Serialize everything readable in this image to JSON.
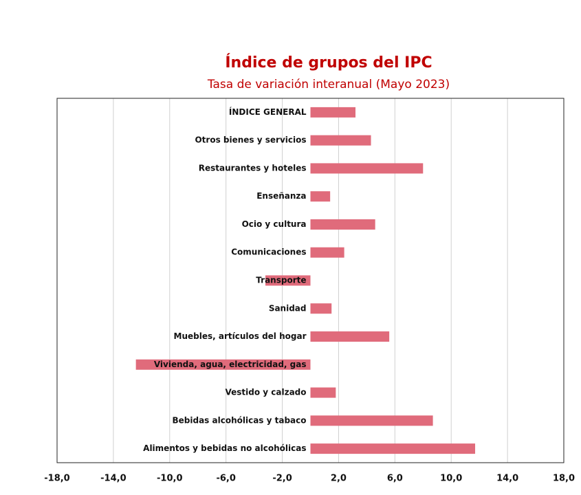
{
  "chart_data": {
    "type": "barh",
    "title": "Índice de grupos del IPC",
    "subtitle": "Tasa de variación interanual (Mayo 2023)",
    "categories": [
      "ÍNDICE GENERAL",
      "Otros bienes y servicios",
      "Restaurantes y hoteles",
      "Enseñanza",
      "Ocio y cultura",
      "Comunicaciones",
      "Transporte",
      "Sanidad",
      "Muebles, artículos del hogar",
      "Vivienda, agua, electricidad, gas",
      "Vestido y calzado",
      "Bebidas alcohólicas y tabaco",
      "Alimentos y bebidas no alcohólicas"
    ],
    "values": [
      3.2,
      4.3,
      8.0,
      1.4,
      4.6,
      2.4,
      -3.2,
      1.5,
      5.6,
      -12.4,
      1.8,
      8.7,
      11.7
    ],
    "color": "#e06b7b",
    "xlim": [
      -18,
      18
    ],
    "xticks": [
      {
        "value": -18,
        "label": "-18,0"
      },
      {
        "value": -14,
        "label": "-14,0"
      },
      {
        "value": -10,
        "label": "-10,0"
      },
      {
        "value": -6,
        "label": "-6,0"
      },
      {
        "value": -2,
        "label": "-2,0"
      },
      {
        "value": 2,
        "label": "2,0"
      },
      {
        "value": 6,
        "label": "6,0"
      },
      {
        "value": 10,
        "label": "10,0"
      },
      {
        "value": 14,
        "label": "14,0"
      },
      {
        "value": 18,
        "label": "18,0"
      }
    ],
    "grid": true
  }
}
